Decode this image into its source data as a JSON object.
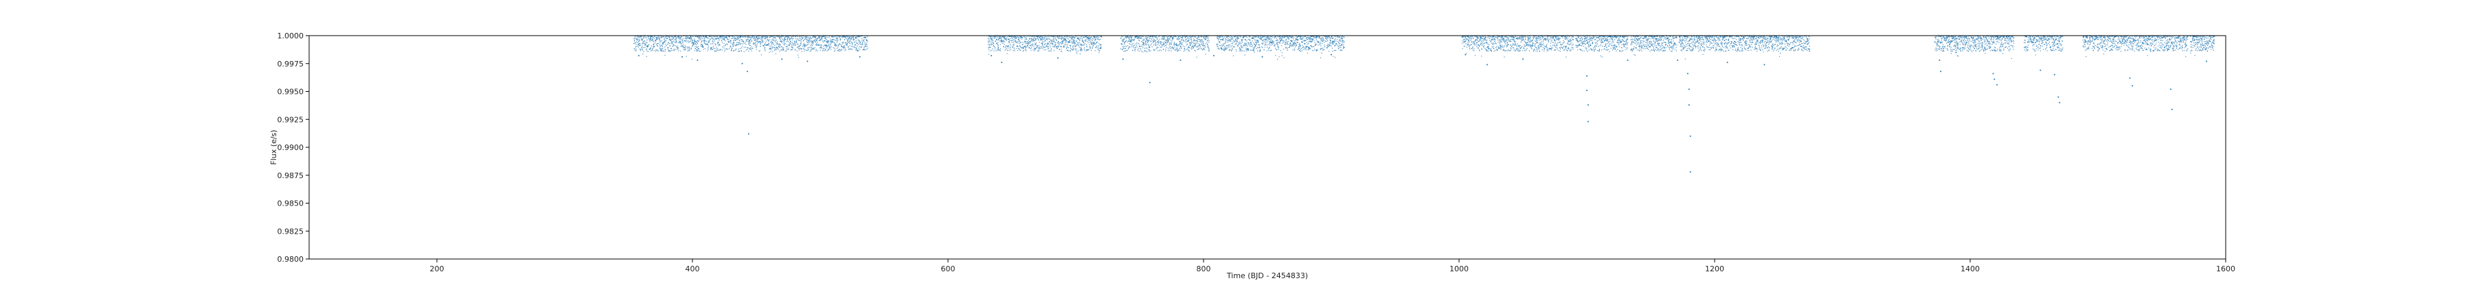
{
  "chart_data": {
    "type": "scatter",
    "title": "",
    "xlabel": "Time (BJD - 2454833)",
    "ylabel": "Flux (e/s)",
    "xlim": [
      100,
      1600
    ],
    "ylim": [
      0.98,
      1.0
    ],
    "xticks": [
      200,
      400,
      600,
      800,
      1000,
      1200,
      1400,
      1600
    ],
    "xtick_labels": [
      "200",
      "400",
      "600",
      "800",
      "1000",
      "1200",
      "1400",
      "1600"
    ],
    "yticks": [
      0.98,
      0.9825,
      0.985,
      0.9875,
      0.99,
      0.9925,
      0.995,
      0.9975,
      1.0
    ],
    "ytick_labels": [
      "0.9800",
      "0.9825",
      "0.9850",
      "0.9875",
      "0.9900",
      "0.9925",
      "0.9950",
      "0.9975",
      "1.0000"
    ],
    "grid": false,
    "marker_color": "#1f77b4",
    "observation_segments": [
      [
        354,
        537
      ],
      [
        631,
        720
      ],
      [
        735,
        804
      ],
      [
        810,
        910
      ],
      [
        1002,
        1089
      ],
      [
        1091,
        1132
      ],
      [
        1134,
        1170
      ],
      [
        1172,
        1274
      ],
      [
        1372,
        1434
      ],
      [
        1442,
        1472
      ],
      [
        1488,
        1570
      ],
      [
        1572,
        1591
      ]
    ],
    "typical_flux_range": [
      0.9986,
      1.0
    ],
    "dip_points": [
      {
        "x": 358,
        "y": 0.9982
      },
      {
        "x": 392,
        "y": 0.9981
      },
      {
        "x": 404,
        "y": 0.9978
      },
      {
        "x": 439,
        "y": 0.9975
      },
      {
        "x": 443,
        "y": 0.9968
      },
      {
        "x": 444,
        "y": 0.9912
      },
      {
        "x": 470,
        "y": 0.9979
      },
      {
        "x": 490,
        "y": 0.9977
      },
      {
        "x": 531,
        "y": 0.9981
      },
      {
        "x": 634,
        "y": 0.9982
      },
      {
        "x": 642,
        "y": 0.9976
      },
      {
        "x": 686,
        "y": 0.998
      },
      {
        "x": 737,
        "y": 0.9979
      },
      {
        "x": 758,
        "y": 0.9958
      },
      {
        "x": 782,
        "y": 0.9978
      },
      {
        "x": 808,
        "y": 0.9982
      },
      {
        "x": 846,
        "y": 0.9981
      },
      {
        "x": 900,
        "y": 0.9983
      },
      {
        "x": 1005,
        "y": 0.9983
      },
      {
        "x": 1022,
        "y": 0.9974
      },
      {
        "x": 1050,
        "y": 0.9979
      },
      {
        "x": 1100,
        "y": 0.9964
      },
      {
        "x": 1100,
        "y": 0.9951
      },
      {
        "x": 1101,
        "y": 0.9938
      },
      {
        "x": 1101,
        "y": 0.9923
      },
      {
        "x": 1132,
        "y": 0.9978
      },
      {
        "x": 1171,
        "y": 0.9978
      },
      {
        "x": 1179,
        "y": 0.9966
      },
      {
        "x": 1180,
        "y": 0.9952
      },
      {
        "x": 1180,
        "y": 0.9938
      },
      {
        "x": 1181,
        "y": 0.991
      },
      {
        "x": 1181,
        "y": 0.9878
      },
      {
        "x": 1210,
        "y": 0.9976
      },
      {
        "x": 1239,
        "y": 0.9974
      },
      {
        "x": 1376,
        "y": 0.9978
      },
      {
        "x": 1377,
        "y": 0.9968
      },
      {
        "x": 1389,
        "y": 0.9985
      },
      {
        "x": 1418,
        "y": 0.9966
      },
      {
        "x": 1419,
        "y": 0.9961
      },
      {
        "x": 1421,
        "y": 0.9956
      },
      {
        "x": 1455,
        "y": 0.9969
      },
      {
        "x": 1466,
        "y": 0.9965
      },
      {
        "x": 1469,
        "y": 0.9945
      },
      {
        "x": 1470,
        "y": 0.994
      },
      {
        "x": 1525,
        "y": 0.9962
      },
      {
        "x": 1527,
        "y": 0.9955
      },
      {
        "x": 1557,
        "y": 0.9952
      },
      {
        "x": 1558,
        "y": 0.9934
      },
      {
        "x": 1585,
        "y": 0.9977
      }
    ]
  }
}
